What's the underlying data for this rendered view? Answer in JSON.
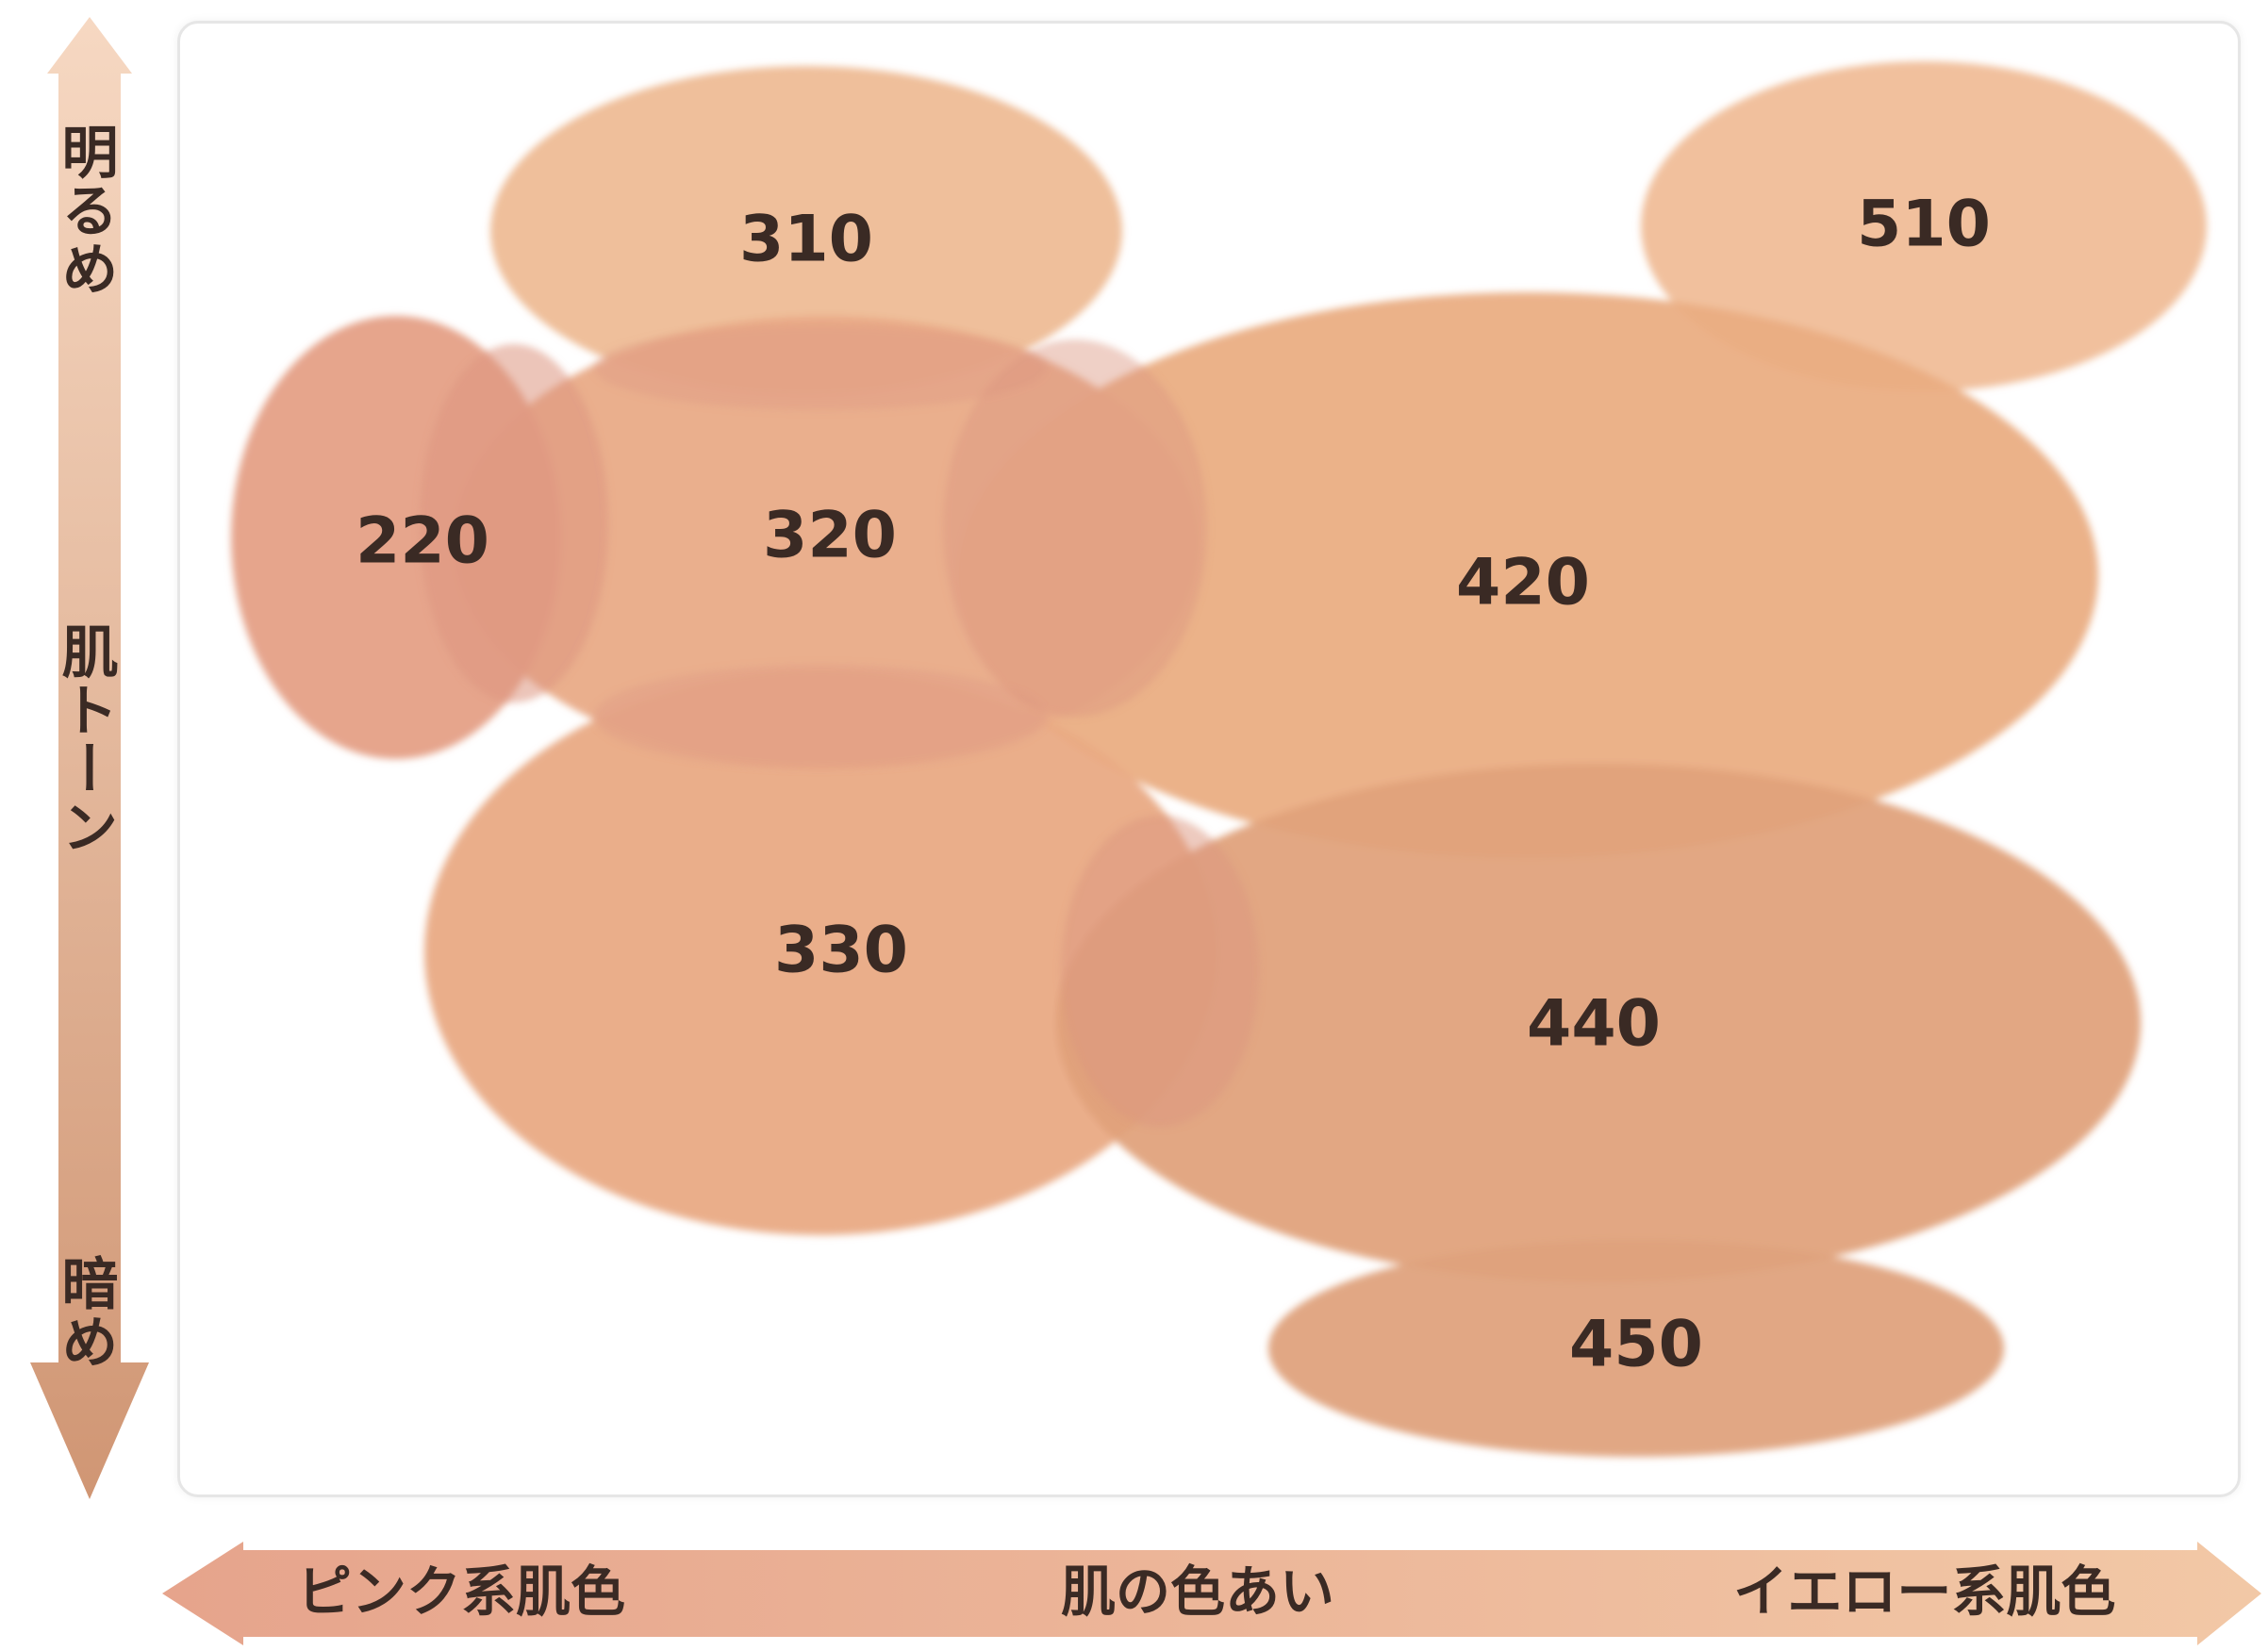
{
  "vertical_axis": {
    "top_label": "明るめ",
    "middle_label": "肌トーン",
    "bottom_label": "暗め"
  },
  "horizontal_axis": {
    "left_label": "ピンク系肌色",
    "middle_label": "肌の色あい",
    "right_label": "イエロー系肌色"
  },
  "shades": [
    {
      "code": "310",
      "color": "#eebc96"
    },
    {
      "code": "510",
      "color": "#f0bd98"
    },
    {
      "code": "220",
      "color": "#e5a086"
    },
    {
      "code": "320",
      "color": "#e9ab88"
    },
    {
      "code": "420",
      "color": "#eaae83"
    },
    {
      "code": "330",
      "color": "#e9aa84"
    },
    {
      "code": "440",
      "color": "#e0a27c"
    },
    {
      "code": "450",
      "color": "#dfa27d"
    }
  ],
  "colors": {
    "arrow_light": "#f3d0b6",
    "arrow_dark": "#d29a78",
    "overlap_pink": "#dc9680",
    "text": "#3a2a24"
  }
}
